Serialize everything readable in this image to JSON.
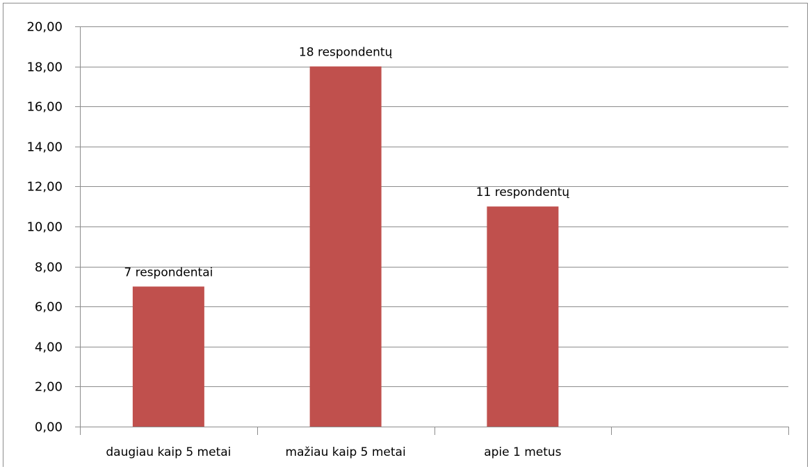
{
  "chart_data": {
    "type": "bar",
    "categories": [
      "daugiau kaip 5 metai",
      "mažiau kaip 5 metai",
      "apie 1 metus",
      ""
    ],
    "values": [
      7,
      18,
      11,
      null
    ],
    "data_labels": [
      "7 respondentai",
      "18 respondentų",
      "11 respondentų",
      ""
    ],
    "ylim": [
      0,
      20
    ],
    "yticks": [
      0,
      2,
      4,
      6,
      8,
      10,
      12,
      14,
      16,
      18,
      20
    ],
    "ytick_labels": [
      "0,00",
      "2,00",
      "4,00",
      "6,00",
      "8,00",
      "10,00",
      "12,00",
      "14,00",
      "16,00",
      "18,00",
      "20,00"
    ],
    "grid": true,
    "legend": "none",
    "bar_color": "#c0504d",
    "grid_color": "#8c8c8c"
  }
}
